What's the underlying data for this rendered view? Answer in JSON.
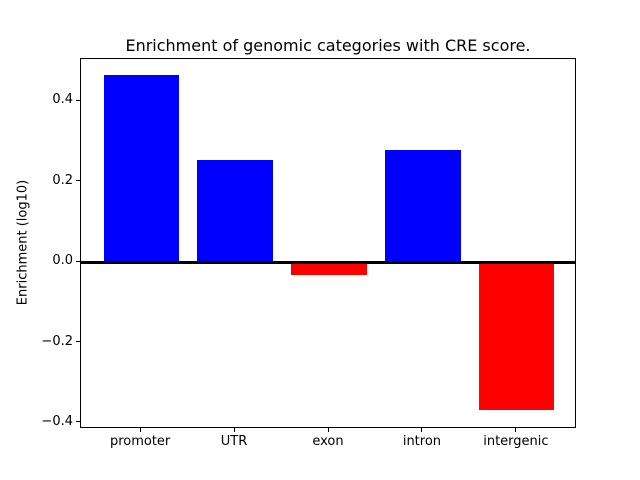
{
  "chart_data": {
    "type": "bar",
    "title": "Enrichment of genomic categories with CRE score.",
    "xlabel": "",
    "ylabel": "Enrichment (log10)",
    "categories": [
      "promoter",
      "UTR",
      "exon",
      "intron",
      "intergenic"
    ],
    "values": [
      0.465,
      0.255,
      -0.032,
      0.278,
      -0.368
    ],
    "positive_color": "#0000ff",
    "negative_color": "#ff0000",
    "axis_color": "#000000",
    "background_color": "#ffffff",
    "yticks": [
      -0.4,
      -0.2,
      0.0,
      0.2,
      0.4
    ],
    "ylim": [
      -0.415,
      0.505
    ],
    "xlim": [
      -0.64,
      4.64
    ],
    "bar_width": 0.8,
    "grid": false,
    "legend": "none",
    "zero_line": true
  }
}
